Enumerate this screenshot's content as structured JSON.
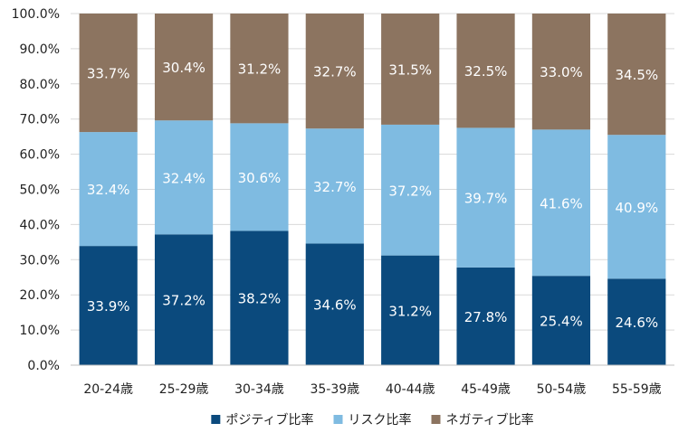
{
  "chart_data": {
    "type": "bar",
    "stacked": true,
    "percent_stacked": true,
    "categories": [
      "20-24歳",
      "25-29歳",
      "30-34歳",
      "35-39歳",
      "40-44歳",
      "45-49歳",
      "50-54歳",
      "55-59歳"
    ],
    "series": [
      {
        "name": "ポジティブ比率",
        "color": "#0b4a7d",
        "values": [
          33.9,
          37.2,
          38.2,
          34.6,
          31.2,
          27.8,
          25.4,
          24.6
        ],
        "labels": [
          "33.9%",
          "37.2%",
          "38.2%",
          "34.6%",
          "31.2%",
          "27.8%",
          "25.4%",
          "24.6%"
        ]
      },
      {
        "name": "リスク比率",
        "color": "#7fbbe1",
        "values": [
          32.4,
          32.4,
          30.6,
          32.7,
          37.2,
          39.7,
          41.6,
          40.9
        ],
        "labels": [
          "32.4%",
          "32.4%",
          "30.6%",
          "32.7%",
          "37.2%",
          "39.7%",
          "41.6%",
          "40.9%"
        ]
      },
      {
        "name": "ネガティブ比率",
        "color": "#8c7460",
        "values": [
          33.7,
          30.4,
          31.2,
          32.7,
          31.5,
          32.5,
          33.0,
          34.5
        ],
        "labels": [
          "33.7%",
          "30.4%",
          "31.2%",
          "32.7%",
          "31.5%",
          "32.5%",
          "33.0%",
          "34.5%"
        ]
      }
    ],
    "ylim": [
      0,
      100
    ],
    "y_ticks": [
      0,
      10,
      20,
      30,
      40,
      50,
      60,
      70,
      80,
      90,
      100
    ],
    "y_tick_labels": [
      "0.0%",
      "10.0%",
      "20.0%",
      "30.0%",
      "40.0%",
      "50.0%",
      "60.0%",
      "70.0%",
      "80.0%",
      "90.0%",
      "100.0%"
    ],
    "grid": true,
    "legend_position": "bottom"
  }
}
